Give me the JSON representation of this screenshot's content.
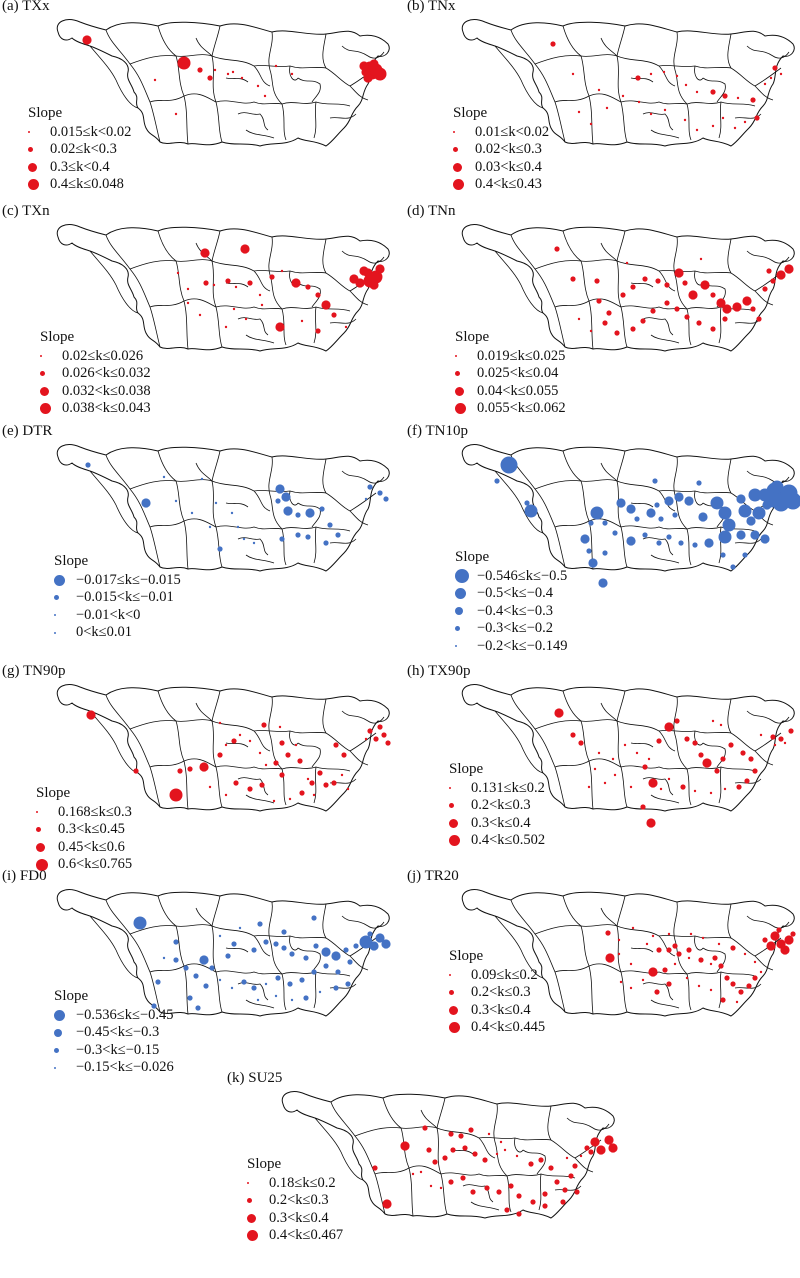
{
  "figure": {
    "colors": {
      "positive": "#e3141e",
      "negative": "#4472c4",
      "outline": "#111111"
    },
    "legend_title": "Slope",
    "panels": [
      {
        "id": "a",
        "label": "(a) TXx",
        "color": "#e3141e",
        "legend_pos": "lower-left",
        "legend": [
          "0.015≤k<0.02",
          "0.02≤k<0.3",
          "0.3≤k<0.4",
          "0.4≤k≤0.048"
        ]
      },
      {
        "id": "b",
        "label": "(b) TNx",
        "color": "#e3141e",
        "legend_pos": "lower-left",
        "legend": [
          "0.01≤k<0.02",
          "0.02<k≤0.3",
          "0.03<k≤0.4",
          "0.4<k≤0.43"
        ]
      },
      {
        "id": "c",
        "label": "(c) TXn",
        "color": "#e3141e",
        "legend_pos": "lower-left",
        "legend": [
          "0.02≤k≤0.026",
          "0.026<k≤0.032",
          "0.032<k≤0.038",
          "0.038<k≤0.043"
        ]
      },
      {
        "id": "d",
        "label": "(d) TNn",
        "color": "#e3141e",
        "legend_pos": "lower-left",
        "legend": [
          "0.019≤k≤0.025",
          "0.025<k≤0.04",
          "0.04<k≤0.055",
          "0.055<k≤0.062"
        ]
      },
      {
        "id": "e",
        "label": "(e) DTR",
        "color": "#4472c4",
        "legend_pos": "lower-left",
        "legend": [
          "−0.017≤k≤−0.015",
          "−0.015<k≤−0.01",
          "−0.01<k<0",
          "0<k≤0.01"
        ]
      },
      {
        "id": "f",
        "label": "(f) TN10p",
        "color": "#4472c4",
        "legend_pos": "lower-left",
        "legend": [
          "−0.546≤k≤−0.5",
          "−0.5<k≤−0.4",
          "−0.4<k≤−0.3",
          "−0.3<k≤−0.2",
          "−0.2<k≤−0.149"
        ]
      },
      {
        "id": "g",
        "label": "(g) TN90p",
        "color": "#e3141e",
        "legend_pos": "lower-left",
        "legend": [
          "0.168≤k≤0.3",
          "0.3<k≤0.45",
          "0.45<k≤0.6",
          "0.6<k≤0.765"
        ]
      },
      {
        "id": "h",
        "label": "(h) TX90p",
        "color": "#e3141e",
        "legend_pos": "lower-left",
        "legend": [
          "0.131≤k≤0.2",
          "0.2<k≤0.3",
          "0.3<k≤0.4",
          "0.4<k≤0.502"
        ]
      },
      {
        "id": "i",
        "label": "(i) FD0",
        "color": "#4472c4",
        "legend_pos": "lower-left",
        "legend": [
          "−0.536≤k≤−0.45",
          "−0.45<k≤−0.3",
          "−0.3<k≤−0.15",
          "−0.15<k≤−0.026"
        ]
      },
      {
        "id": "j",
        "label": "(j) TR20",
        "color": "#e3141e",
        "legend_pos": "lower-left",
        "legend": [
          "0.09≤k≤0.2",
          "0.2<k≤0.3",
          "0.3<k≤0.4",
          "0.4<k≤0.445"
        ]
      },
      {
        "id": "k",
        "label": "(k) SU25",
        "color": "#e3141e",
        "legend_pos": "lower-left",
        "legend": [
          "0.18≤k≤0.2",
          "0.2<k≤0.3",
          "0.3<k≤0.4",
          "0.4<k≤0.467"
        ]
      }
    ]
  }
}
